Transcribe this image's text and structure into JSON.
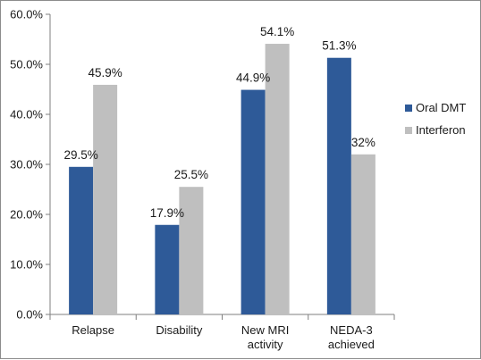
{
  "chart_data": {
    "type": "bar",
    "categories": [
      [
        "Relapse"
      ],
      [
        "Disability"
      ],
      [
        "New MRI",
        "activity"
      ],
      [
        "NEDA-3",
        "achieved"
      ]
    ],
    "series": [
      {
        "name": "Oral DMT",
        "color": "#2e5a98",
        "values": [
          29.5,
          17.9,
          44.9,
          51.3
        ],
        "labels": [
          "29.5%",
          "17.9%",
          "44.9%",
          "51.3%"
        ]
      },
      {
        "name": "Interferon",
        "color": "#bfbfbf",
        "values": [
          45.9,
          25.5,
          54.1,
          32.0
        ],
        "labels": [
          "45.9%",
          "25.5%",
          "54.1%",
          "32%"
        ]
      }
    ],
    "y_ticks": [
      "0.0%",
      "10.0%",
      "20.0%",
      "30.0%",
      "40.0%",
      "50.0%",
      "60.0%"
    ],
    "ylim": [
      0,
      60
    ],
    "grid": false,
    "legend_position": "right"
  }
}
